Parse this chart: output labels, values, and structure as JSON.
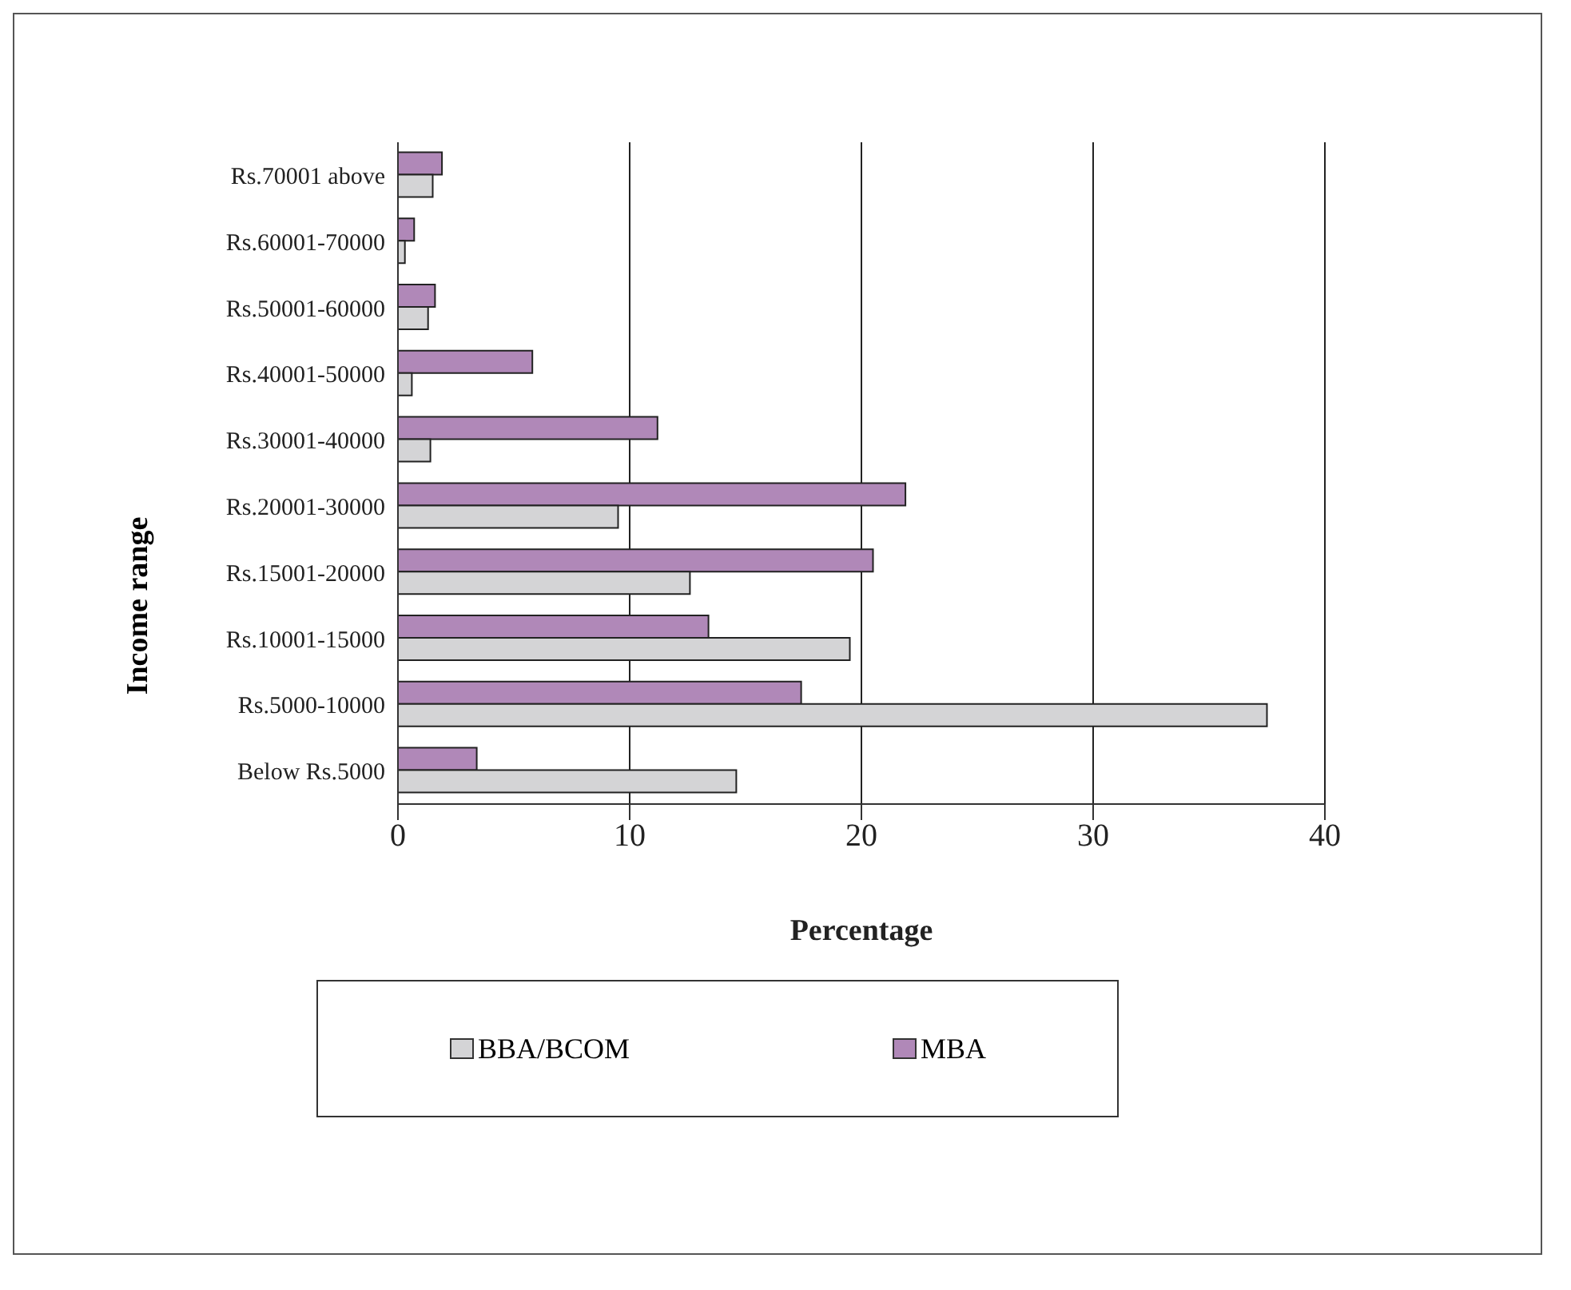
{
  "chart_data": {
    "type": "bar",
    "orientation": "horizontal",
    "xlabel": "Percentage",
    "ylabel": "Income range",
    "categories": [
      "Rs.70001 above",
      "Rs.60001-70000",
      "Rs.50001-60000",
      "Rs.40001-50000",
      "Rs.30001-40000",
      "Rs.20001-30000",
      "Rs.15001-20000",
      "Rs.10001-15000",
      "Rs.5000-10000",
      "Below Rs.5000"
    ],
    "series": [
      {
        "name": "BBA/BCOM",
        "color": "#d4d4d6",
        "values": [
          1.5,
          0.3,
          1.3,
          0.6,
          1.4,
          9.5,
          12.6,
          19.5,
          37.5,
          14.6
        ]
      },
      {
        "name": "MBA",
        "color": "#b088b8",
        "values": [
          1.9,
          0.7,
          1.6,
          5.8,
          11.2,
          21.9,
          20.5,
          13.4,
          17.4,
          3.4
        ]
      }
    ],
    "xlim": [
      0,
      40
    ],
    "xticks": [
      0,
      10,
      20,
      30,
      40
    ],
    "grid": "x",
    "legend": "bottom"
  }
}
